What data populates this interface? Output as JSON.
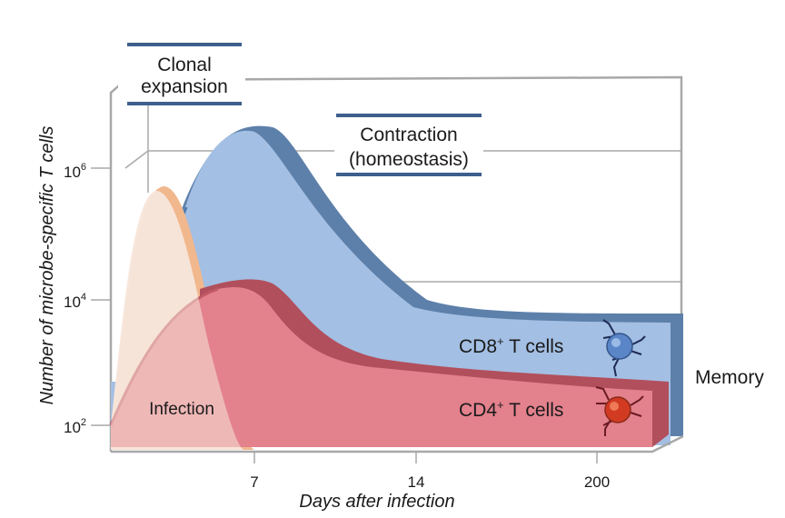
{
  "labels": {
    "clonal_expansion_line1": "Clonal",
    "clonal_expansion_line2": "expansion",
    "contraction_line1": "Contraction",
    "contraction_line2": "(homeostasis)",
    "infection": "Infection",
    "cd8": "CD8",
    "cd8_sup": "+",
    "cd8_suffix": " T cells",
    "cd4": "CD4",
    "cd4_sup": "+",
    "cd4_suffix": " T cells",
    "memory": "Memory"
  },
  "axes": {
    "y_title": "Number of microbe-specific T cells",
    "y_ticks": [
      {
        "base": "10",
        "exp": "6"
      },
      {
        "base": "10",
        "exp": "4"
      },
      {
        "base": "10",
        "exp": "2"
      }
    ],
    "x_title": "Days after infection",
    "x_ticks": [
      "7",
      "14",
      "200"
    ]
  },
  "colors": {
    "cd8_front": "#a3bfe3",
    "cd8_side": "#5d80aa",
    "cd4_front": "#e3818d",
    "cd4_side": "#b24f5c",
    "infection": "#f8e6da",
    "infection_edge": "#f1b78d",
    "frame": "#9a9a9a",
    "label_bar": "#3f5f8c"
  }
}
